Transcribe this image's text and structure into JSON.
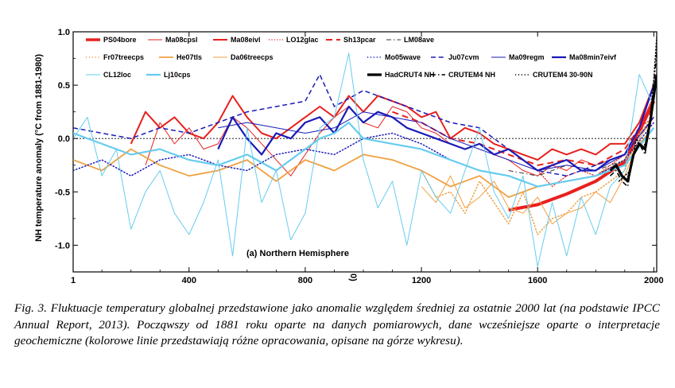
{
  "chart_data": {
    "type": "line",
    "ylabel": "NH temperature anomaly (°C from 1881-1980)",
    "panel_label": "(a) Northern Hemisphere",
    "stray_mark": "0)",
    "xlim": [
      1,
      2010
    ],
    "ylim": [
      -1.25,
      1.0
    ],
    "x_ticks": [
      1,
      400,
      800,
      1200,
      1600,
      2000
    ],
    "x_tick_labels": [
      "1",
      "400",
      "800",
      "1200",
      "1600",
      "2000"
    ],
    "y_ticks": [
      1.0,
      0.5,
      0.0,
      -0.5,
      -1.0
    ],
    "y_tick_labels": [
      "1.0",
      "0.5",
      "0.0",
      "-0.5",
      "-1.0"
    ],
    "zero_line": "dotted",
    "legend_location": "top",
    "series": [
      {
        "name": "PS04bore",
        "color": "#e8201d",
        "style": "solid",
        "width": 4,
        "row": 0,
        "col": 0,
        "x": [
          1500,
          1600,
          1700,
          1800,
          1900,
          2000
        ],
        "y": [
          -0.67,
          -0.62,
          -0.52,
          -0.4,
          -0.22,
          0.35
        ]
      },
      {
        "name": "Ma08cpsl",
        "color": "#e8201d",
        "style": "solid",
        "width": 1,
        "row": 0,
        "col": 1,
        "x": [
          250,
          300,
          350,
          400,
          450,
          500,
          550,
          600,
          650,
          700,
          750,
          800,
          850,
          900,
          950,
          1000,
          1050,
          1100,
          1150,
          1200,
          1250,
          1300,
          1350,
          1400,
          1450,
          1500,
          1550,
          1600,
          1650,
          1700,
          1750,
          1800,
          1850,
          1900,
          1950,
          2000
        ],
        "y": [
          -0.25,
          0.15,
          -0.05,
          0.1,
          -0.1,
          -0.05,
          0.2,
          0.1,
          -0.05,
          -0.2,
          -0.35,
          -0.15,
          0.05,
          0.2,
          0.3,
          0.15,
          0.1,
          0.3,
          0.25,
          0.1,
          0.05,
          -0.05,
          -0.1,
          -0.05,
          -0.15,
          -0.2,
          -0.3,
          -0.35,
          -0.25,
          -0.3,
          -0.2,
          -0.25,
          -0.2,
          -0.15,
          0.1,
          0.4
        ]
      },
      {
        "name": "Ma08eivl",
        "color": "#e8201d",
        "style": "solid",
        "width": 2,
        "row": 0,
        "col": 2,
        "x": [
          200,
          250,
          300,
          350,
          400,
          450,
          500,
          550,
          600,
          650,
          700,
          750,
          800,
          850,
          900,
          950,
          1000,
          1050,
          1100,
          1150,
          1200,
          1250,
          1300,
          1350,
          1400,
          1450,
          1500,
          1550,
          1600,
          1650,
          1700,
          1750,
          1800,
          1850,
          1900,
          1950,
          2000
        ],
        "y": [
          -0.05,
          0.25,
          0.1,
          0.2,
          0.05,
          0.0,
          0.15,
          0.4,
          0.2,
          0.05,
          0.0,
          0.1,
          0.2,
          0.3,
          0.2,
          0.4,
          0.25,
          0.4,
          0.35,
          0.3,
          0.2,
          0.25,
          0.0,
          0.1,
          0.05,
          -0.05,
          -0.1,
          -0.15,
          -0.2,
          -0.1,
          -0.15,
          -0.1,
          -0.15,
          -0.05,
          -0.05,
          0.15,
          0.5
        ]
      },
      {
        "name": "LO12glac",
        "color": "#e8201d",
        "style": "dotted",
        "width": 1.2,
        "row": 0,
        "col": 3,
        "x": [
          1600,
          1650,
          1700,
          1750,
          1800,
          1850,
          1900,
          1950,
          2000
        ],
        "y": [
          -0.3,
          -0.45,
          -0.35,
          -0.3,
          -0.35,
          -0.25,
          -0.15,
          0.1,
          0.2
        ]
      },
      {
        "name": "Sh13pcar",
        "color": "#e8201d",
        "style": "dashed",
        "width": 2,
        "row": 0,
        "col": 4,
        "x": [
          1100,
          1200,
          1300,
          1400,
          1500,
          1600,
          1700,
          1800,
          1900,
          2000
        ],
        "y": [
          0.25,
          0.15,
          0.0,
          -0.05,
          -0.15,
          -0.25,
          -0.2,
          -0.25,
          -0.1,
          0.3
        ]
      },
      {
        "name": "LM08ave",
        "color": "#333333",
        "style": "dashdot",
        "width": 1,
        "row": 0,
        "col": 5,
        "x": [
          1500,
          1600,
          1700,
          1800,
          1900,
          2000
        ],
        "y": [
          -0.3,
          -0.35,
          -0.25,
          -0.3,
          -0.2,
          0.1
        ]
      },
      {
        "name": "Fr07treecps",
        "color": "#f0a040",
        "style": "dotted",
        "width": 1.5,
        "row": 1,
        "col": 0,
        "x": [
          1200,
          1250,
          1300,
          1350,
          1400,
          1450,
          1500,
          1550,
          1600,
          1650,
          1700,
          1750,
          1800,
          1850,
          1900,
          1950,
          2000
        ],
        "y": [
          -0.3,
          -0.55,
          -0.5,
          -0.7,
          -0.4,
          -0.6,
          -0.8,
          -0.5,
          -0.9,
          -0.75,
          -0.7,
          -0.55,
          -0.5,
          -0.4,
          -0.3,
          0.05,
          0.2
        ]
      },
      {
        "name": "He07tls",
        "color": "#f0a040",
        "style": "solid",
        "width": 1.8,
        "row": 1,
        "col": 1,
        "x": [
          1,
          100,
          200,
          300,
          400,
          500,
          600,
          700,
          800,
          900,
          1000,
          1100,
          1200,
          1300,
          1400,
          1500,
          1600,
          1700,
          1800,
          1900,
          2000
        ],
        "y": [
          -0.2,
          -0.3,
          -0.1,
          -0.25,
          -0.35,
          -0.3,
          -0.2,
          -0.4,
          -0.2,
          -0.3,
          -0.15,
          -0.2,
          -0.3,
          -0.45,
          -0.35,
          -0.55,
          -0.45,
          -0.4,
          -0.35,
          -0.2,
          0.1
        ]
      },
      {
        "name": "Da06treecps",
        "color": "#f0a040",
        "style": "solid",
        "width": 1,
        "row": 1,
        "col": 2,
        "x": [
          1200,
          1250,
          1300,
          1350,
          1400,
          1450,
          1500,
          1550,
          1600,
          1650,
          1700,
          1750,
          1800,
          1850,
          1900,
          1950,
          2000
        ],
        "y": [
          -0.45,
          -0.6,
          -0.35,
          -0.65,
          -0.55,
          -0.4,
          -0.65,
          -0.7,
          -0.55,
          -0.8,
          -0.7,
          -0.65,
          -0.5,
          -0.6,
          -0.35,
          0.0,
          0.2
        ]
      },
      {
        "name": "Mo05wave",
        "color": "#1a1ab8",
        "style": "dotted",
        "width": 1.5,
        "row": 1,
        "col": 3,
        "x": [
          1,
          100,
          200,
          300,
          400,
          500,
          600,
          700,
          800,
          900,
          1000,
          1100,
          1200,
          1300,
          1400,
          1500,
          1600,
          1700,
          1800,
          1900,
          2000
        ],
        "y": [
          -0.3,
          -0.2,
          -0.35,
          -0.2,
          -0.15,
          -0.25,
          -0.3,
          -0.15,
          -0.1,
          -0.15,
          0.0,
          0.05,
          -0.05,
          -0.2,
          -0.3,
          -0.35,
          -0.45,
          -0.4,
          -0.35,
          -0.2,
          0.15
        ]
      },
      {
        "name": "Ju07cvm",
        "color": "#1a1ab8",
        "style": "dashed",
        "width": 1.5,
        "row": 1,
        "col": 4,
        "x": [
          1,
          100,
          200,
          300,
          400,
          500,
          600,
          700,
          800,
          850,
          900,
          1000,
          1100,
          1200,
          1300,
          1400,
          1500,
          1600,
          1700,
          1800,
          1900,
          2000
        ],
        "y": [
          0.1,
          0.05,
          0.0,
          0.1,
          0.05,
          0.15,
          0.25,
          0.3,
          0.35,
          0.6,
          0.3,
          0.45,
          0.35,
          0.25,
          0.15,
          0.1,
          -0.1,
          -0.3,
          -0.35,
          -0.25,
          -0.15,
          0.2
        ]
      },
      {
        "name": "Ma09regm",
        "color": "#1a1ab8",
        "style": "solid",
        "width": 1,
        "row": 1,
        "col": 5,
        "x": [
          500,
          600,
          700,
          800,
          900,
          1000,
          1100,
          1200,
          1300,
          1400,
          1500,
          1600,
          1700,
          1800,
          1900,
          2000
        ],
        "y": [
          0.1,
          0.15,
          0.1,
          0.05,
          0.1,
          0.25,
          0.2,
          0.15,
          0.0,
          -0.1,
          -0.2,
          -0.3,
          -0.25,
          -0.3,
          -0.15,
          0.2
        ]
      },
      {
        "name": "Ma08min7eivf",
        "color": "#1a1ab8",
        "style": "solid",
        "width": 2.2,
        "row": 1,
        "col": 6,
        "x": [
          500,
          550,
          600,
          650,
          700,
          750,
          800,
          850,
          900,
          950,
          1000,
          1050,
          1100,
          1150,
          1200,
          1250,
          1300,
          1350,
          1400,
          1450,
          1500,
          1550,
          1600,
          1650,
          1700,
          1750,
          1800,
          1850,
          1900,
          1950,
          2000
        ],
        "y": [
          -0.1,
          0.2,
          0.0,
          -0.15,
          0.05,
          0.0,
          0.15,
          0.2,
          0.05,
          0.3,
          0.15,
          0.25,
          0.2,
          0.1,
          0.05,
          0.0,
          -0.05,
          -0.1,
          -0.05,
          -0.15,
          -0.1,
          -0.2,
          -0.3,
          -0.25,
          -0.2,
          -0.3,
          -0.3,
          -0.2,
          -0.15,
          0.1,
          0.5
        ]
      },
      {
        "name": "CL12loc",
        "color": "#66ccee",
        "style": "solid",
        "width": 1,
        "row": 2,
        "col": 0,
        "x": [
          1,
          50,
          100,
          150,
          200,
          250,
          300,
          350,
          400,
          450,
          500,
          550,
          600,
          650,
          700,
          750,
          800,
          850,
          900,
          950,
          1000,
          1050,
          1100,
          1150,
          1200,
          1250,
          1300,
          1350,
          1400,
          1450,
          1500,
          1550,
          1600,
          1650,
          1700,
          1750,
          1800,
          1850,
          1900,
          1950,
          2000
        ],
        "y": [
          0.0,
          0.2,
          -0.35,
          -0.1,
          -0.85,
          -0.5,
          -0.3,
          -0.7,
          -0.9,
          -0.6,
          -0.2,
          -1.1,
          0.1,
          -0.6,
          -0.3,
          -0.95,
          -0.7,
          0.1,
          0.2,
          0.8,
          -0.2,
          -0.65,
          -0.4,
          -1.0,
          -0.3,
          -0.55,
          -0.7,
          -0.3,
          0.1,
          -0.5,
          -0.75,
          -0.35,
          -1.2,
          -0.6,
          -1.1,
          -0.55,
          -0.9,
          -0.45,
          -0.3,
          0.6,
          0.3
        ]
      },
      {
        "name": "Lj10cps",
        "color": "#66ccee",
        "style": "solid",
        "width": 2.2,
        "row": 2,
        "col": 1,
        "x": [
          1,
          100,
          200,
          300,
          400,
          500,
          600,
          700,
          800,
          850,
          900,
          950,
          1000,
          1100,
          1200,
          1300,
          1400,
          1500,
          1600,
          1700,
          1800,
          1900,
          2000
        ],
        "y": [
          0.05,
          -0.05,
          -0.15,
          -0.1,
          -0.2,
          -0.25,
          -0.15,
          -0.3,
          -0.1,
          0.0,
          0.05,
          0.15,
          0.0,
          -0.05,
          -0.1,
          -0.2,
          -0.3,
          -0.35,
          -0.45,
          -0.4,
          -0.35,
          -0.25,
          0.1
        ]
      },
      {
        "name": "HadCRUT4 NH",
        "color": "#000000",
        "style": "solid",
        "width": 3.2,
        "row": 2,
        "col": 2,
        "x": [
          1850,
          1870,
          1890,
          1910,
          1930,
          1950,
          1970,
          1990,
          2010
        ],
        "y": [
          -0.3,
          -0.25,
          -0.35,
          -0.4,
          -0.15,
          -0.05,
          -0.1,
          0.2,
          0.6
        ]
      },
      {
        "name": "CRUTEM4 NH",
        "color": "#000000",
        "style": "dashdot",
        "width": 1.5,
        "row": 2,
        "col": 3,
        "x": [
          1850,
          1870,
          1890,
          1910,
          1930,
          1950,
          1970,
          1990,
          2010
        ],
        "y": [
          -0.35,
          -0.3,
          -0.4,
          -0.45,
          -0.15,
          -0.05,
          -0.15,
          0.25,
          0.8
        ]
      },
      {
        "name": "CRUTEM4 30-90N",
        "color": "#000000",
        "style": "dotted",
        "width": 1.5,
        "row": 2,
        "col": 4,
        "x": [
          1880,
          1900,
          1920,
          1940,
          1960,
          1980,
          2000,
          2010
        ],
        "y": [
          -0.4,
          -0.35,
          -0.3,
          0.0,
          -0.1,
          0.0,
          0.55,
          0.95
        ]
      }
    ]
  },
  "caption": {
    "text": "Fig. 3. Fluktuacje temperatury globalnej przedstawione jako anomalie względem średniej za ostatnie 2000 lat (na podstawie IPCC Annual Report, 2013). Począwszy od 1881 roku oparte na danych pomiarowych, dane wcześniejsze oparte o interpretacje geochemiczne (kolorowe linie przedstawiają różne opracowania, opisane na górze wykresu)."
  }
}
